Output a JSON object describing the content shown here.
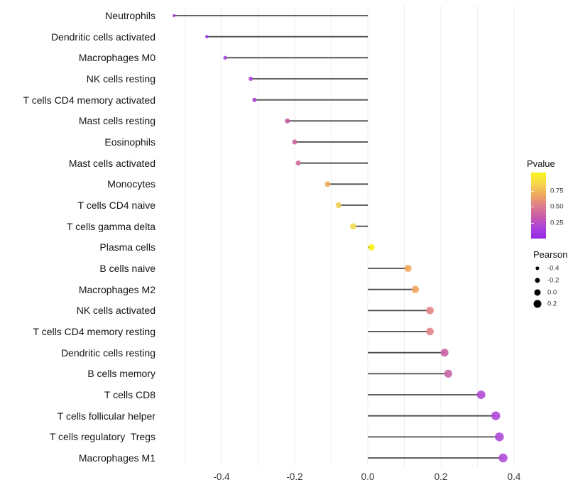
{
  "chart_data": {
    "type": "scatter",
    "variant": "horizontal-lollipop",
    "title": "",
    "xlabel": "",
    "ylabel": "",
    "grid": true,
    "grid_range": [
      -0.5,
      0.4
    ],
    "grid_step": 0.1,
    "xlim": [
      -0.57,
      0.42
    ],
    "x_ticks": [
      {
        "label": "-0.4",
        "value": -0.4
      },
      {
        "label": "-0.2",
        "value": -0.2
      },
      {
        "label": "0.0",
        "value": 0.0
      },
      {
        "label": "0.2",
        "value": 0.2
      },
      {
        "label": "0.4",
        "value": 0.4
      }
    ],
    "points": [
      {
        "label": "Neutrophils",
        "pearson": -0.53,
        "color": "#9B30DB"
      },
      {
        "label": "Dendritic cells activated",
        "pearson": -0.44,
        "color": "#A03BDC"
      },
      {
        "label": "Macrophages M0",
        "pearson": -0.39,
        "color": "#A540DC"
      },
      {
        "label": "NK cells resting",
        "pearson": -0.32,
        "color": "#AC43D6"
      },
      {
        "label": "T cells CD4 memory activated",
        "pearson": -0.31,
        "color": "#AE47D4"
      },
      {
        "label": "Mast cells resting",
        "pearson": -0.22,
        "color": "#C4589F"
      },
      {
        "label": "Eosinophils",
        "pearson": -0.2,
        "color": "#CD6B9B"
      },
      {
        "label": "Mast cells activated",
        "pearson": -0.19,
        "color": "#CF6F9E"
      },
      {
        "label": "Monocytes",
        "pearson": -0.11,
        "color": "#EFAE61"
      },
      {
        "label": "T cells CD4 naive",
        "pearson": -0.08,
        "color": "#F2CE53"
      },
      {
        "label": "T cells gamma delta",
        "pearson": -0.04,
        "color": "#F3DD4D"
      },
      {
        "label": "Plasma cells",
        "pearson": 0.01,
        "color": "#F8F51D"
      },
      {
        "label": "B cells naive",
        "pearson": 0.11,
        "color": "#F0AC60"
      },
      {
        "label": "Macrophages M2",
        "pearson": 0.13,
        "color": "#EFA45C"
      },
      {
        "label": "NK cells activated",
        "pearson": 0.17,
        "color": "#E28588"
      },
      {
        "label": "T cells CD4 memory resting",
        "pearson": 0.17,
        "color": "#E18389"
      },
      {
        "label": "Dendritic cells resting",
        "pearson": 0.21,
        "color": "#CC62A7"
      },
      {
        "label": "B cells memory",
        "pearson": 0.22,
        "color": "#CB64A8"
      },
      {
        "label": "T cells CD8",
        "pearson": 0.31,
        "color": "#B14ED5"
      },
      {
        "label": "T cells follicular helper",
        "pearson": 0.35,
        "color": "#AE4AD8"
      },
      {
        "label": "T cells regulatory  Tregs",
        "pearson": 0.36,
        "color": "#AF4CD9"
      },
      {
        "label": "Macrophages M1",
        "pearson": 0.37,
        "color": "#B04FDA"
      }
    ],
    "legend_pvalue": {
      "title": "Pvalue",
      "tick_labels": [
        "0.75",
        "0.50",
        "0.25"
      ],
      "tick_values": [
        0.75,
        0.5,
        0.25
      ],
      "range": [
        0,
        1.04
      ],
      "gradient_top_to_bottom": [
        "#F9F51B",
        "#F5D74E",
        "#F0A85D",
        "#DF7F8B",
        "#C95CA8",
        "#AC44DB",
        "#9528E6"
      ]
    },
    "legend_pearson": {
      "title": "Pearson",
      "entries": [
        {
          "label": "-0.4",
          "value": -0.4
        },
        {
          "label": "-0.2",
          "value": -0.2
        },
        {
          "label": "0.0",
          "value": 0.0
        },
        {
          "label": "0.2",
          "value": 0.2
        }
      ]
    },
    "stem_color": "#4A4A4A",
    "gridline_color": "#ECECEC"
  }
}
